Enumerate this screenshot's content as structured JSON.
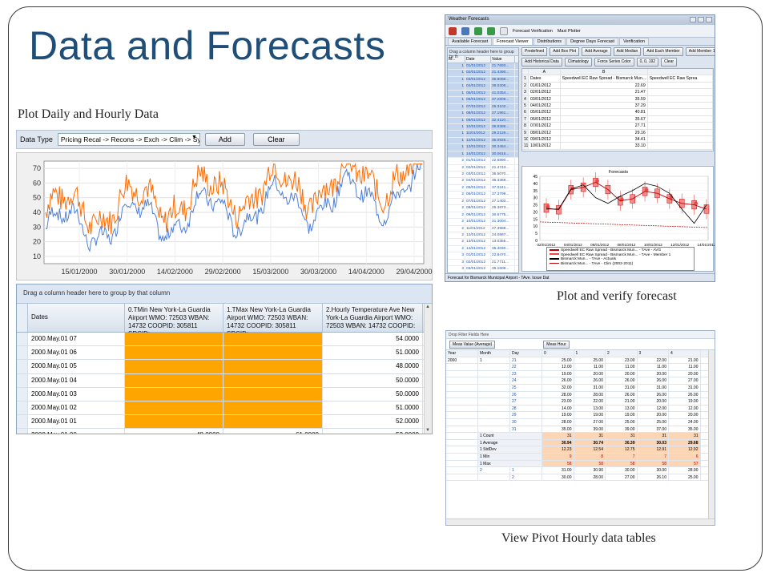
{
  "slide": {
    "title": "Data and Forecasts",
    "caption_daily": "Plot Daily and Hourly Data",
    "caption_forecast": "Plot and verify forecast",
    "caption_pivot": "View Pivot Hourly data tables"
  },
  "panel_daily": {
    "toolbar": {
      "label": "Data Type",
      "select_value": "Pricing Recal -> Recons -> Exch -> Clim -> Synop",
      "add_label": "Add",
      "clear_label": "Clear"
    },
    "chart": {
      "y_ticks": [
        "70",
        "60",
        "50",
        "40",
        "30",
        "20",
        "10"
      ],
      "x_ticks": [
        "15/01/2000",
        "30/01/2000",
        "14/02/2000",
        "29/02/2000",
        "15/03/2000",
        "30/03/2000",
        "14/04/2000",
        "29/04/2000"
      ],
      "colors": {
        "series_a": "#ff6a00",
        "series_b": "#4f7fd6"
      }
    },
    "grid": {
      "group_hint": "Drag a column header here to group by that column",
      "headers": [
        "Dates",
        "0.TMin New York-La Guardia Airport WMO: 72503 WBAN: 14732 COOPID: 305811 SRCID:",
        "1.TMax New York-La Guardia Airport WMO: 72503 WBAN: 14732 COOPID: 305811 SRCID:",
        "2.Hourly Temperature Ave New York-La Guardia Airport WMO: 72503 WBAN: 14732 COOPID:"
      ],
      "rows": [
        {
          "date": "2000.May.01 07",
          "tmin": "",
          "tmax": "",
          "avg": "54.0000"
        },
        {
          "date": "2000.May.01 06",
          "tmin": "",
          "tmax": "",
          "avg": "51.0000"
        },
        {
          "date": "2000.May.01 05",
          "tmin": "",
          "tmax": "",
          "avg": "48.0000"
        },
        {
          "date": "2000.May.01 04",
          "tmin": "",
          "tmax": "",
          "avg": "50.0000"
        },
        {
          "date": "2000.May.01 03",
          "tmin": "",
          "tmax": "",
          "avg": "50.0000"
        },
        {
          "date": "2000.May.01 02",
          "tmin": "",
          "tmax": "",
          "avg": "51.0000"
        },
        {
          "date": "2000.May.01 01",
          "tmin": "",
          "tmax": "",
          "avg": "52.0000"
        },
        {
          "date": "2000.May.01 00",
          "tmin": "48.0000",
          "tmax": "61.0000",
          "avg": "53.0000"
        }
      ]
    }
  },
  "panel_forecast": {
    "window_title": "Weather Forecasts",
    "ribbon": [
      "Forecast Verification",
      "Maxi Plotter"
    ],
    "tabs": [
      "Available Forecast",
      "Forecast Viewer",
      "Distributions",
      "Degree Days Forecast",
      "Verification"
    ],
    "left_hint": "Drag a column header here to group by th",
    "left_cols": [
      "M...",
      "Date",
      "Value"
    ],
    "left_rows": [
      [
        "1",
        "01/01/2012",
        "21.7693..."
      ],
      [
        "1",
        "02/01/2012",
        "21.4390..."
      ],
      [
        "1",
        "03/01/2012",
        "35.6088..."
      ],
      [
        "1",
        "04/01/2012",
        "39.0308..."
      ],
      [
        "1",
        "05/01/2012",
        "41.0354..."
      ],
      [
        "1",
        "06/01/2012",
        "37.2809..."
      ],
      [
        "1",
        "07/01/2012",
        "25.3102..."
      ],
      [
        "1",
        "08/01/2012",
        "27.1961..."
      ],
      [
        "1",
        "09/01/2012",
        "32.4110..."
      ],
      [
        "1",
        "10/01/2012",
        "36.9386..."
      ],
      [
        "1",
        "11/01/2012",
        "29.2126..."
      ],
      [
        "1",
        "12/01/2012",
        "35.0926..."
      ],
      [
        "1",
        "13/01/2012",
        "30.3454..."
      ],
      [
        "1",
        "14/01/2012",
        "30.0615..."
      ],
      [
        "2",
        "01/01/2012",
        "22.6890..."
      ],
      [
        "2",
        "02/01/2012",
        "21.4743..."
      ],
      [
        "2",
        "03/01/2012",
        "36.5070..."
      ],
      [
        "2",
        "04/01/2012",
        "36.3369..."
      ],
      [
        "2",
        "05/01/2012",
        "37.0241..."
      ],
      [
        "2",
        "06/01/2012",
        "37.3799..."
      ],
      [
        "2",
        "07/01/2012",
        "27.1403..."
      ],
      [
        "2",
        "08/01/2012",
        "25.3873..."
      ],
      [
        "2",
        "09/01/2012",
        "30.6775..."
      ],
      [
        "2",
        "10/01/2012",
        "31.3004..."
      ],
      [
        "2",
        "11/01/2012",
        "27.3988..."
      ],
      [
        "2",
        "12/01/2012",
        "24.0867..."
      ],
      [
        "2",
        "13/01/2012",
        "13.0355..."
      ],
      [
        "2",
        "14/01/2012",
        "35.4030..."
      ],
      [
        "3",
        "01/01/2012",
        "22.8470..."
      ],
      [
        "3",
        "02/01/2012",
        "21.7711..."
      ],
      [
        "3",
        "03/01/2012",
        "35.1609..."
      ],
      [
        "3",
        "04/01/2012",
        "37.6634..."
      ],
      [
        "3",
        "05/01/2012",
        "36.1715..."
      ]
    ],
    "buttons_row1": [
      "Predefined",
      "Add Box Plot",
      "Add Average",
      "Add Median",
      "Add Each Member",
      "Add Member 1"
    ],
    "buttons_row2": [
      "Add Historical Data",
      "Climatology",
      "Force Series Color",
      "0, 0, 192",
      "Clear"
    ],
    "sheet_cols": [
      "",
      "A",
      "B",
      ""
    ],
    "sheet_row1": [
      "1",
      "Dates",
      "Speedwell EC Raw Spread - Bismarck Mun... - TAve - AVG",
      "Speedwell EC Raw Sprea"
    ],
    "sheet_rows": [
      [
        "2",
        "01/01/2012",
        "22.69"
      ],
      [
        "3",
        "02/01/2012",
        "21.47"
      ],
      [
        "4",
        "03/01/2012",
        "35.59"
      ],
      [
        "5",
        "04/01/2012",
        "37.29"
      ],
      [
        "6",
        "05/01/2012",
        "40.81"
      ],
      [
        "7",
        "06/01/2012",
        "35.67"
      ],
      [
        "8",
        "07/01/2012",
        "27.71"
      ],
      [
        "9",
        "08/01/2012",
        "29.16"
      ],
      [
        "10",
        "09/01/2012",
        "34.41"
      ],
      [
        "11",
        "10/01/2012",
        "33.10"
      ]
    ],
    "chart": {
      "title": "Forecasts",
      "y_ticks": [
        "45",
        "40",
        "35",
        "30",
        "25",
        "20",
        "15",
        "10",
        "5",
        "0"
      ],
      "x_ticks": [
        "02/01/2012",
        "04/01/2012",
        "06/01/2012",
        "08/01/2012",
        "10/01/2012",
        "12/01/2012",
        "14/01/2012"
      ],
      "legend": [
        "Speedwell EC Raw Spread - Bismarck Mun... - TAve - AVG",
        "Speedwell EC Raw Spread - Bismarck Mun... - TAve - Member 1",
        "Bismarck Mun... - TAve - Actuals",
        "Bismarck Mun... - TAve - Clim (2002-2011)"
      ]
    },
    "status": "Forecast for Bismarck Municipal Airport - TAve. Issue Dat"
  },
  "panel_pivot": {
    "drop_hint": "Drop Filter Fields Here",
    "data_field": "Meas Value (Average)",
    "column_field": "Meas Hour",
    "row_fields": [
      "Year",
      "Month",
      "Day"
    ],
    "hour_cols": [
      "0",
      "1",
      "2",
      "3",
      "4"
    ],
    "year": "2000",
    "month": "1",
    "day_rows": [
      [
        "21",
        "25.00",
        "25.00",
        "23.00",
        "22.00",
        "21.00"
      ],
      [
        "22",
        "12.00",
        "11.00",
        "11.00",
        "11.00",
        "11.00"
      ],
      [
        "23",
        "19.00",
        "20.00",
        "20.00",
        "20.00",
        "20.00"
      ],
      [
        "24",
        "26.00",
        "26.00",
        "26.00",
        "26.00",
        "27.00"
      ],
      [
        "25",
        "32.00",
        "31.00",
        "31.00",
        "31.00",
        "31.00"
      ],
      [
        "26",
        "28.00",
        "28.00",
        "26.00",
        "26.00",
        "26.00"
      ],
      [
        "27",
        "23.00",
        "22.00",
        "21.00",
        "20.00",
        "19.00"
      ],
      [
        "28",
        "14.00",
        "13.00",
        "13.00",
        "12.00",
        "12.00"
      ],
      [
        "29",
        "19.00",
        "19.00",
        "19.00",
        "20.00",
        "20.00"
      ],
      [
        "30",
        "28.00",
        "27.00",
        "25.00",
        "25.00",
        "24.00"
      ],
      [
        "31",
        "35.00",
        "39.00",
        "39.00",
        "37.00",
        "35.00"
      ]
    ],
    "summary_rows": [
      {
        "label": "1 Count",
        "vals": [
          "31",
          "31",
          "31",
          "31",
          "31"
        ],
        "style": "peach"
      },
      {
        "label": "1 Average",
        "vals": [
          "30.94",
          "30.74",
          "30.39",
          "30.03",
          "29.68"
        ],
        "style": "peach bold"
      },
      {
        "label": "1 StdDev",
        "vals": [
          "12.23",
          "12.54",
          "12.75",
          "12.91",
          "12.92"
        ],
        "style": "peach"
      },
      {
        "label": "1 Min",
        "vals": [
          "9",
          "8",
          "7",
          "7",
          "6"
        ],
        "style": "peach red"
      },
      {
        "label": "1 Max",
        "vals": [
          "58",
          "58",
          "58",
          "58",
          "57"
        ],
        "style": "peach red"
      }
    ],
    "next_month": "2",
    "next_rows": [
      [
        "1",
        "31.00",
        "30.90",
        "30.00",
        "30.00",
        "28.90"
      ],
      [
        "2",
        "30.00",
        "28.00",
        "27.00",
        "26.10",
        "25.00"
      ]
    ]
  }
}
